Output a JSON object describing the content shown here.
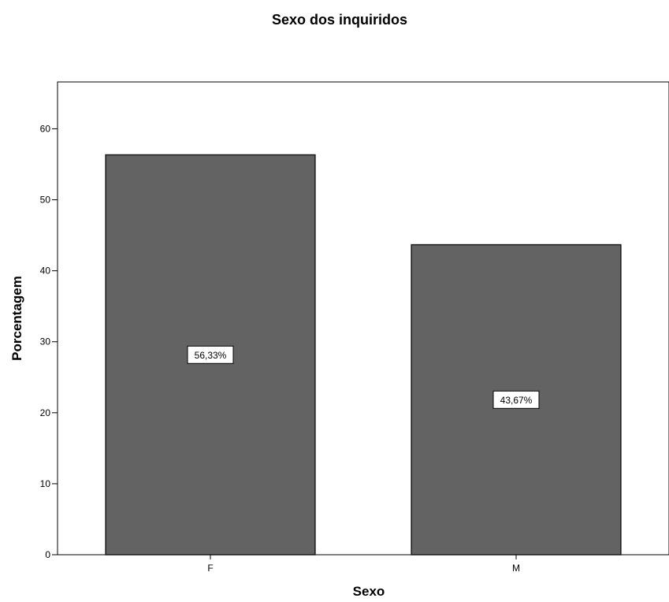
{
  "chart_data": {
    "type": "bar",
    "title": "Sexo dos inquiridos",
    "xlabel": "Sexo",
    "ylabel": "Porcentagem",
    "categories": [
      "F",
      "M"
    ],
    "values": [
      56.33,
      43.67
    ],
    "data_labels": [
      "56,33%",
      "43,67%"
    ],
    "yticks": [
      0,
      10,
      20,
      30,
      40,
      50,
      60
    ],
    "ylim": [
      0,
      66.6
    ],
    "grid": false,
    "legend": "none",
    "colors": {
      "bar": "#636363",
      "bar_stroke": "#1a1a1a",
      "background": "#ffffff"
    }
  }
}
